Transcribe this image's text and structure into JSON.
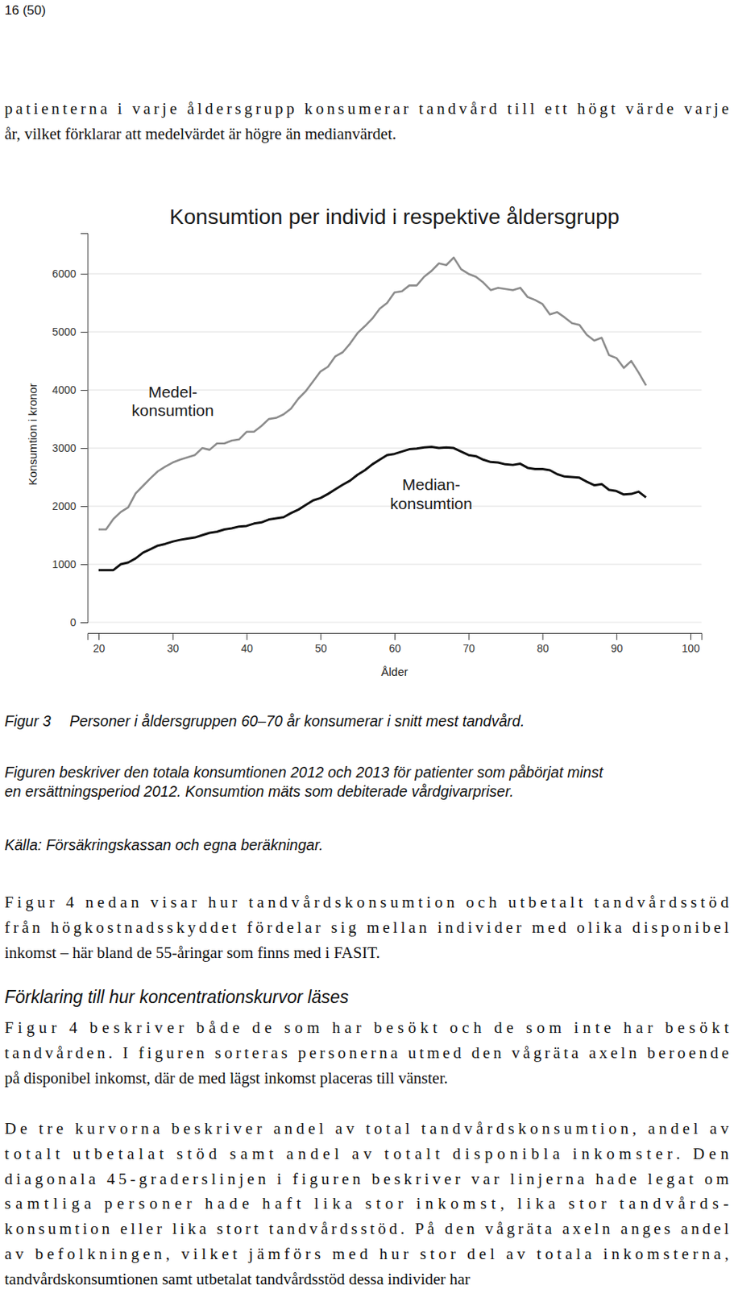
{
  "page_number": "16 (50)",
  "top_text": {
    "lines": [
      "patienterna i varje åldersgrupp konsumerar tandvård till ett högt värde varje",
      "år, vilket förklarar att medelvärdet är högre än medianvärdet."
    ]
  },
  "chart_data": {
    "type": "line",
    "title": "Konsumtion per individ i respektive åldersgrupp",
    "x_label": "Ålder",
    "y_label": "Konsumtion i kronor",
    "x": [
      20,
      21,
      22,
      23,
      24,
      25,
      26,
      27,
      28,
      29,
      30,
      31,
      32,
      33,
      34,
      35,
      36,
      37,
      38,
      39,
      40,
      41,
      42,
      43,
      44,
      45,
      46,
      47,
      48,
      49,
      50,
      51,
      52,
      53,
      54,
      55,
      56,
      57,
      58,
      59,
      60,
      61,
      62,
      63,
      64,
      65,
      66,
      67,
      68,
      69,
      70,
      71,
      72,
      73,
      74,
      75,
      76,
      77,
      78,
      79,
      80,
      81,
      82,
      83,
      84,
      85,
      86,
      87,
      88,
      89,
      90,
      91,
      92,
      93,
      94
    ],
    "series": [
      {
        "color": "#8c8c8c",
        "values": [
          1600,
          1600,
          1780,
          1900,
          1980,
          2220,
          2350,
          2480,
          2600,
          2680,
          2750,
          2800,
          2840,
          2880,
          3000,
          2970,
          3080,
          3080,
          3130,
          3150,
          3280,
          3280,
          3380,
          3500,
          3520,
          3580,
          3680,
          3850,
          3980,
          4150,
          4320,
          4400,
          4580,
          4650,
          4800,
          4980,
          5100,
          5230,
          5400,
          5500,
          5680,
          5700,
          5800,
          5800,
          5950,
          6050,
          6180,
          6150,
          6280,
          6080,
          6000,
          5950,
          5850,
          5720,
          5760,
          5740,
          5720,
          5760,
          5600,
          5550,
          5480,
          5300,
          5340,
          5250,
          5150,
          5120,
          4950,
          4850,
          4900,
          4600,
          4550,
          4380,
          4500,
          4300,
          4080
        ]
      },
      {
        "color": "#111111",
        "values": [
          900,
          900,
          900,
          1000,
          1030,
          1100,
          1200,
          1260,
          1320,
          1350,
          1390,
          1420,
          1440,
          1460,
          1500,
          1540,
          1560,
          1600,
          1620,
          1650,
          1660,
          1700,
          1720,
          1770,
          1790,
          1810,
          1880,
          1940,
          2020,
          2100,
          2140,
          2210,
          2290,
          2370,
          2440,
          2540,
          2620,
          2720,
          2800,
          2880,
          2900,
          2940,
          2980,
          2990,
          3010,
          3020,
          3000,
          3010,
          3000,
          2940,
          2880,
          2860,
          2800,
          2760,
          2750,
          2720,
          2710,
          2730,
          2660,
          2640,
          2640,
          2620,
          2550,
          2510,
          2500,
          2490,
          2420,
          2360,
          2380,
          2280,
          2260,
          2200,
          2210,
          2250,
          2150
        ]
      }
    ],
    "xlim": [
      18.5,
      101.5
    ],
    "ylim": [
      0,
      6700
    ],
    "xticks": [
      20,
      30,
      40,
      50,
      60,
      70,
      80,
      90,
      100
    ],
    "yticks": [
      0,
      1000,
      2000,
      3000,
      4000,
      5000,
      6000
    ],
    "grid": true,
    "annotations": [
      {
        "lines": [
          "Medel-",
          "konsumtion"
        ]
      },
      {
        "lines": [
          "Median-",
          "konsumtion"
        ]
      }
    ]
  },
  "caption": {
    "label": "Figur 3",
    "title": "Personer i åldersgruppen 60–70 år konsumerar i snitt mest tandvård.",
    "note_lines": [
      "Figuren beskriver den totala konsumtionen 2012 och 2013 för patienter som påbörjat minst",
      "en ersättningsperiod 2012. Konsumtion mäts som debiterade vårdgivarpriser."
    ],
    "source": "Källa: Försäkringskassan och egna beräkningar."
  },
  "sections": [
    {
      "kind": "paragraph",
      "lines": [
        "Figur 4 nedan visar hur tandvårdskonsumtion och utbetalt tandvårdsstöd",
        "från högkostnadsskyddet fördelar sig mellan individer med olika disponibel",
        "inkomst – här bland de 55-åringar som finns med i FASIT."
      ]
    },
    {
      "kind": "heading",
      "lines": [
        "Förklaring till hur koncentrationskurvor läses"
      ]
    },
    {
      "kind": "paragraph",
      "lines": [
        "Figur 4 beskriver både de som har besökt och de som inte har besökt",
        "tandvården. I figuren sorteras personerna utmed den vågräta axeln beroende",
        "på disponibel inkomst, där de med lägst inkomst placeras till vänster."
      ]
    },
    {
      "kind": "paragraph",
      "lines": [
        "De tre kurvorna beskriver andel av total tandvårdskonsumtion, andel av",
        "totalt utbetalat stöd samt andel av totalt disponibla inkomster. Den",
        "diagonala 45-graderslinjen i figuren beskriver var linjerna hade legat om",
        "samtliga personer hade haft lika stor inkomst, lika stor tandvårds-",
        "konsumtion eller lika stort tandvårdsstöd. På den vågräta axeln anges andel",
        "av befolkningen, vilket jämförs med hur stor del av totala inkomsterna,",
        "tandvårdskonsumtionen samt utbetalat tandvårdsstöd dessa individer har"
      ]
    }
  ]
}
